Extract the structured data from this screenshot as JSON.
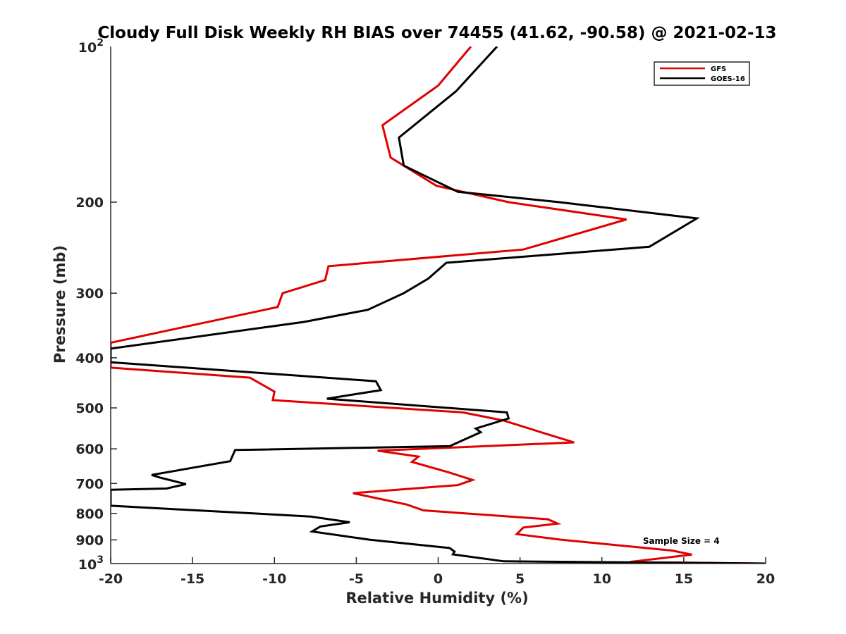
{
  "chart_data": {
    "type": "line",
    "title": "Cloudy Full Disk Weekly RH BIAS over 74455 (41.62, -90.58) @ 2021-02-13",
    "xlabel": "Relative Humidity (%)",
    "ylabel": "Pressure (mb)",
    "xlim": [
      -20,
      20
    ],
    "ylim": [
      100,
      1000
    ],
    "y_scale": "log",
    "y_reversed": true,
    "grid": false,
    "legend_position": "top-right",
    "x_ticks": [
      -20,
      -15,
      -10,
      -5,
      0,
      5,
      10,
      15,
      20
    ],
    "x_tick_labels": [
      "-20",
      "-15",
      "-10",
      "-5",
      "0",
      "5",
      "10",
      "15",
      "20"
    ],
    "y_ticks": [
      200,
      300,
      400,
      500,
      600,
      700,
      800,
      900
    ],
    "y_tick_labels": [
      "200",
      "300",
      "400",
      "500",
      "600",
      "700",
      "800",
      "900"
    ],
    "y_end_labels": [
      {
        "value": 100,
        "base": "10",
        "exp": "2"
      },
      {
        "value": 1000,
        "base": "10",
        "exp": "3"
      }
    ],
    "annotation": {
      "text": "Sample Size = 4",
      "x": 12.5,
      "y": 905
    },
    "series": [
      {
        "name": "GFS",
        "color": "#e00000",
        "points": [
          [
            2.0,
            100
          ],
          [
            0.0,
            119
          ],
          [
            -3.4,
            142
          ],
          [
            -2.9,
            164
          ],
          [
            -0.1,
            186
          ],
          [
            4.3,
            200
          ],
          [
            11.5,
            216
          ],
          [
            5.2,
            247
          ],
          [
            -6.7,
            266
          ],
          [
            -6.9,
            283
          ],
          [
            -9.5,
            300
          ],
          [
            -9.8,
            319
          ],
          [
            -20.0,
            374
          ],
          [
            -20.0,
            418
          ],
          [
            -11.5,
            437
          ],
          [
            -10.0,
            465
          ],
          [
            -10.1,
            483
          ],
          [
            1.5,
            510
          ],
          [
            4.0,
            529
          ],
          [
            6.5,
            560
          ],
          [
            8.3,
            583
          ],
          [
            -3.7,
            605
          ],
          [
            -1.2,
            621
          ],
          [
            -1.6,
            636
          ],
          [
            0.5,
            664
          ],
          [
            2.1,
            689
          ],
          [
            1.2,
            705
          ],
          [
            -5.2,
            731
          ],
          [
            -3.8,
            747
          ],
          [
            -1.9,
            769
          ],
          [
            -0.9,
            789
          ],
          [
            6.7,
            821
          ],
          [
            7.3,
            837
          ],
          [
            5.2,
            852
          ],
          [
            4.8,
            877
          ],
          [
            7.5,
            899
          ],
          [
            14.3,
            944
          ],
          [
            15.5,
            961
          ],
          [
            11.7,
            993
          ],
          [
            20.0,
            1000
          ]
        ]
      },
      {
        "name": "GOES-16",
        "color": "#000000",
        "points": [
          [
            3.6,
            100
          ],
          [
            1.1,
            122
          ],
          [
            -2.4,
            150
          ],
          [
            -2.1,
            170
          ],
          [
            1.2,
            191
          ],
          [
            7.4,
            200
          ],
          [
            15.8,
            215
          ],
          [
            12.9,
            244
          ],
          [
            0.5,
            262
          ],
          [
            -0.6,
            281
          ],
          [
            -2.1,
            300
          ],
          [
            -4.3,
            323
          ],
          [
            -8.2,
            341
          ],
          [
            -20.0,
            384
          ],
          [
            -20.0,
            408
          ],
          [
            -3.8,
            444
          ],
          [
            -3.5,
            462
          ],
          [
            -6.8,
            480
          ],
          [
            4.2,
            510
          ],
          [
            4.3,
            524
          ],
          [
            2.3,
            548
          ],
          [
            2.6,
            557
          ],
          [
            0.7,
            593
          ],
          [
            -12.4,
            603
          ],
          [
            -12.7,
            634
          ],
          [
            -17.5,
            674
          ],
          [
            -16.9,
            683
          ],
          [
            -15.4,
            702
          ],
          [
            -16.6,
            716
          ],
          [
            -20.0,
            720
          ],
          [
            -20.0,
            773
          ],
          [
            -7.8,
            811
          ],
          [
            -5.4,
            832
          ],
          [
            -7.2,
            848
          ],
          [
            -7.7,
            867
          ],
          [
            -4.2,
            899
          ],
          [
            0.7,
            933
          ],
          [
            1.0,
            948
          ],
          [
            0.9,
            960
          ],
          [
            4.0,
            990
          ],
          [
            20.0,
            1000
          ]
        ]
      }
    ]
  }
}
